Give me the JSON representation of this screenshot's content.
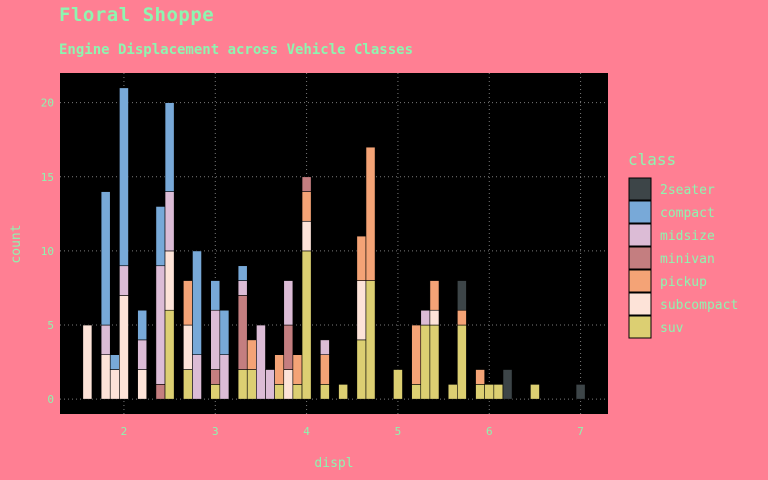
{
  "header": {
    "title": "Floral Shoppe",
    "subtitle": "Engine Displacement across Vehicle Classes"
  },
  "colors": {
    "background": "#ff7f93",
    "panel": "#000000",
    "text": "#8ef5b0",
    "grid": "#7a7a7a"
  },
  "chart_data": {
    "type": "bar",
    "stacked": true,
    "title": "Floral Shoppe",
    "subtitle": "Engine Displacement across Vehicle Classes",
    "xlabel": "displ",
    "ylabel": "count",
    "xlim": [
      1.3,
      7.3
    ],
    "ylim": [
      -1,
      22
    ],
    "x_ticks": [
      2,
      3,
      4,
      5,
      6,
      7
    ],
    "y_ticks": [
      0,
      5,
      10,
      15,
      20
    ],
    "grid": true,
    "legend_title": "class",
    "legend_position": "right",
    "series": [
      {
        "name": "2seater",
        "color": "#3d4548"
      },
      {
        "name": "compact",
        "color": "#78a9d8"
      },
      {
        "name": "midsize",
        "color": "#dcbcd6"
      },
      {
        "name": "minivan",
        "color": "#c47e80"
      },
      {
        "name": "pickup",
        "color": "#f4a376"
      },
      {
        "name": "subcompact",
        "color": "#fde3d8"
      },
      {
        "name": "suv",
        "color": "#dccf72"
      }
    ],
    "bins": [
      {
        "x": 1.6,
        "counts": {
          "subcompact": 5
        }
      },
      {
        "x": 1.8,
        "counts": {
          "subcompact": 3,
          "midsize": 2,
          "compact": 9
        }
      },
      {
        "x": 1.9,
        "counts": {
          "subcompact": 2,
          "compact": 1
        }
      },
      {
        "x": 2.0,
        "counts": {
          "subcompact": 7,
          "midsize": 2,
          "compact": 12
        }
      },
      {
        "x": 2.2,
        "counts": {
          "subcompact": 2,
          "midsize": 2,
          "compact": 2
        }
      },
      {
        "x": 2.4,
        "counts": {
          "minivan": 1,
          "midsize": 8,
          "compact": 4
        }
      },
      {
        "x": 2.5,
        "counts": {
          "suv": 6,
          "subcompact": 4,
          "midsize": 4,
          "compact": 6
        }
      },
      {
        "x": 2.7,
        "counts": {
          "suv": 2,
          "subcompact": 3,
          "pickup": 3
        }
      },
      {
        "x": 2.8,
        "counts": {
          "midsize": 3,
          "compact": 7
        }
      },
      {
        "x": 3.0,
        "counts": {
          "suv": 1,
          "minivan": 1,
          "midsize": 4,
          "compact": 2
        }
      },
      {
        "x": 3.1,
        "counts": {
          "midsize": 3,
          "compact": 3
        }
      },
      {
        "x": 3.3,
        "counts": {
          "suv": 2,
          "minivan": 5,
          "midsize": 1,
          "compact": 1
        }
      },
      {
        "x": 3.4,
        "counts": {
          "suv": 2,
          "pickup": 2
        }
      },
      {
        "x": 3.5,
        "counts": {
          "midsize": 5
        }
      },
      {
        "x": 3.6,
        "counts": {
          "midsize": 2
        }
      },
      {
        "x": 3.7,
        "counts": {
          "suv": 1,
          "pickup": 2
        }
      },
      {
        "x": 3.8,
        "counts": {
          "subcompact": 2,
          "minivan": 3,
          "midsize": 3
        }
      },
      {
        "x": 3.9,
        "counts": {
          "suv": 1,
          "pickup": 2
        }
      },
      {
        "x": 4.0,
        "counts": {
          "suv": 10,
          "subcompact": 2,
          "pickup": 2,
          "minivan": 1
        }
      },
      {
        "x": 4.2,
        "counts": {
          "suv": 1,
          "pickup": 2,
          "midsize": 1
        }
      },
      {
        "x": 4.4,
        "counts": {
          "suv": 1
        }
      },
      {
        "x": 4.6,
        "counts": {
          "suv": 4,
          "subcompact": 4,
          "pickup": 3
        }
      },
      {
        "x": 4.7,
        "counts": {
          "suv": 8,
          "pickup": 9
        }
      },
      {
        "x": 5.0,
        "counts": {
          "suv": 2
        }
      },
      {
        "x": 5.2,
        "counts": {
          "suv": 1,
          "pickup": 4
        }
      },
      {
        "x": 5.3,
        "counts": {
          "suv": 5,
          "midsize": 1
        }
      },
      {
        "x": 5.4,
        "counts": {
          "suv": 5,
          "subcompact": 1,
          "pickup": 2
        }
      },
      {
        "x": 5.6,
        "counts": {
          "suv": 1
        }
      },
      {
        "x": 5.7,
        "counts": {
          "suv": 5,
          "pickup": 1,
          "2seater": 2
        }
      },
      {
        "x": 5.9,
        "counts": {
          "suv": 1,
          "pickup": 1
        }
      },
      {
        "x": 6.0,
        "counts": {
          "suv": 1
        }
      },
      {
        "x": 6.1,
        "counts": {
          "suv": 1
        }
      },
      {
        "x": 6.2,
        "counts": {
          "2seater": 2
        }
      },
      {
        "x": 6.5,
        "counts": {
          "suv": 1
        }
      },
      {
        "x": 7.0,
        "counts": {
          "2seater": 1
        }
      }
    ]
  }
}
